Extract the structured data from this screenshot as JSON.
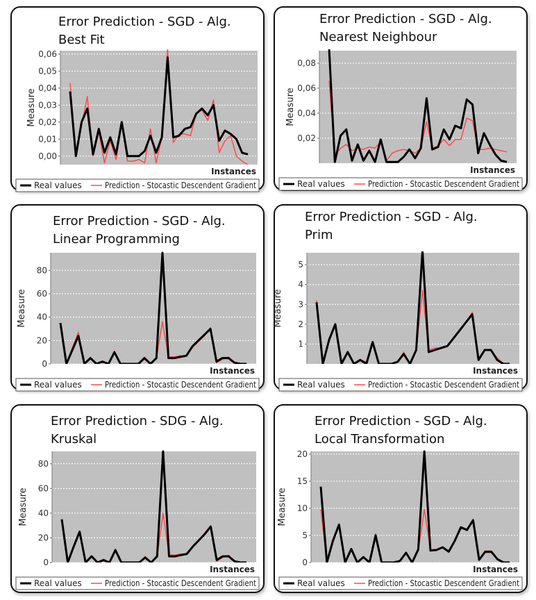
{
  "colors": {
    "real": "#000000",
    "prediction": "#ff4a4a",
    "plot_bg": "#c0c0c0",
    "grid": "#ffffff"
  },
  "legend": {
    "real": "Real values",
    "prediction": "Prediction - Stocastic Descendent Gradient"
  },
  "chart_data": [
    {
      "type": "line",
      "title_line1": "Error Prediction - SGD - Alg.",
      "title_line2": "Best Fit",
      "xlabel": "Instances",
      "ylabel": "Measure",
      "ylim": [
        -0.005,
        0.062
      ],
      "yticks": [
        "0,00",
        "0,01",
        "0,02",
        "0,03",
        "0,04",
        "0,05",
        "0,06"
      ],
      "ytick_values": [
        0,
        0.01,
        0.02,
        0.03,
        0.04,
        0.05,
        0.06
      ],
      "grid": true,
      "series": [
        {
          "name": "Real values",
          "values": [
            0.038,
            0,
            0.02,
            0.028,
            0.001,
            0.016,
            0.002,
            0.011,
            0.001,
            0.02,
            0,
            0,
            0,
            0.003,
            0.012,
            0.002,
            0.011,
            0.058,
            0.011,
            0.012,
            0.016,
            0.017,
            0.025,
            0.028,
            0.024,
            0.03,
            0.009,
            0.015,
            0.013,
            0.01,
            0.002,
            0.001
          ]
        },
        {
          "name": "Prediction - Stocastic Descendent Gradient",
          "values": [
            0.043,
            0,
            0.018,
            0.035,
            0,
            0.014,
            -0.004,
            0.009,
            -0.002,
            0.019,
            -0.003,
            -0.003,
            -0.002,
            -0.004,
            0.016,
            -0.004,
            0.011,
            0.063,
            0.008,
            0.013,
            0.013,
            0.012,
            0.025,
            0.027,
            0.021,
            0.033,
            0.002,
            0.009,
            0.012,
            0,
            -0.003,
            -0.005
          ]
        }
      ]
    },
    {
      "type": "line",
      "title_line1": "Error Prediction - SGD - Alg.",
      "title_line2": "Nearest Neighbour",
      "xlabel": "Instances",
      "ylabel": "Measure",
      "ylim": [
        0,
        0.09
      ],
      "yticks": [
        "0,02",
        "0,04",
        "0,06",
        "0,08"
      ],
      "ytick_values": [
        0.02,
        0.04,
        0.06,
        0.08
      ],
      "grid": true,
      "series": [
        {
          "name": "Real values",
          "values": [
            0.092,
            0.001,
            0.022,
            0.027,
            0.002,
            0.015,
            0.002,
            0.01,
            0.001,
            0.019,
            0.001,
            0.001,
            0.001,
            0.005,
            0.011,
            0.004,
            0.012,
            0.052,
            0.011,
            0.013,
            0.027,
            0.019,
            0.03,
            0.028,
            0.051,
            0.047,
            0.008,
            0.024,
            0.015,
            0.007,
            0.002,
            0.001
          ]
        },
        {
          "name": "Prediction - Stocastic Descendent Gradient",
          "values": [
            0.066,
            0.006,
            0.012,
            0.015,
            0.01,
            0.012,
            0.011,
            0.013,
            0.012,
            0.017,
            0.002,
            0.008,
            0.01,
            0.011,
            0.01,
            0.008,
            0.012,
            0.033,
            0.012,
            0.014,
            0.019,
            0.014,
            0.019,
            0.019,
            0.036,
            0.034,
            0.011,
            0.011,
            0.012,
            0.011,
            0.01,
            0.009
          ]
        }
      ]
    },
    {
      "type": "line",
      "title_line1": "Error Prediction - SGD - Alg.",
      "title_line2": "Linear Programming",
      "xlabel": "Instances",
      "ylabel": "Measure",
      "ylim": [
        0,
        95
      ],
      "yticks": [
        "0",
        "20",
        "40",
        "60",
        "80"
      ],
      "ytick_values": [
        0,
        20,
        40,
        60,
        80
      ],
      "grid": true,
      "series": [
        {
          "name": "Real values",
          "values": [
            35,
            0,
            12,
            24,
            0,
            5,
            0,
            2,
            0,
            10,
            0,
            0,
            0,
            0,
            5,
            0,
            5,
            95,
            5,
            5,
            6,
            7,
            15,
            20,
            25,
            30,
            2,
            5,
            5,
            1,
            0,
            0
          ]
        },
        {
          "name": "Prediction - Stocastic Descendent Gradient",
          "values": [
            33,
            0,
            14,
            27,
            0,
            5,
            0,
            1,
            0,
            11,
            0,
            0,
            0,
            0,
            4,
            0,
            5,
            36,
            6,
            6,
            7,
            7,
            14,
            19,
            24,
            31,
            1,
            4,
            6,
            1,
            0,
            0
          ]
        }
      ]
    },
    {
      "type": "line",
      "title_line1": "Error Prediction - SGD - Alg.",
      "title_line2": "Prim",
      "xlabel": "Instances",
      "ylabel": "Measure",
      "ylim": [
        0,
        5.6
      ],
      "yticks": [
        "1",
        "2",
        "3",
        "4",
        "5"
      ],
      "ytick_values": [
        1,
        2,
        3,
        4,
        5
      ],
      "grid": true,
      "series": [
        {
          "name": "Real values",
          "values": [
            3.1,
            0,
            1.2,
            2,
            0,
            0.6,
            0,
            0.2,
            0,
            1.1,
            0,
            0,
            0,
            0.1,
            0.5,
            0,
            0.7,
            5.7,
            0.6,
            0.7,
            0.8,
            0.9,
            1.3,
            1.7,
            2.1,
            2.5,
            0.2,
            0.7,
            0.7,
            0.2,
            0,
            0
          ]
        },
        {
          "name": "Prediction - Stocastic Descendent Gradient",
          "values": [
            3.2,
            0,
            1.3,
            2,
            0.1,
            0.6,
            0,
            0.2,
            0.1,
            1.1,
            0,
            0,
            0,
            0.1,
            0.6,
            0,
            0.7,
            3.7,
            0.7,
            0.8,
            0.8,
            0.9,
            1.3,
            1.7,
            2.1,
            2.6,
            0.2,
            0.7,
            0.7,
            0.3,
            0,
            0
          ]
        }
      ]
    },
    {
      "type": "line",
      "title_line1": "Error Prediction - SDG - Alg.",
      "title_line2": "Kruskal",
      "xlabel": "Instances",
      "ylabel": "Measure",
      "ylim": [
        0,
        90
      ],
      "yticks": [
        "0",
        "20",
        "40",
        "60",
        "80"
      ],
      "ytick_values": [
        0,
        20,
        40,
        60,
        80
      ],
      "grid": true,
      "series": [
        {
          "name": "Real values",
          "values": [
            35,
            0,
            13,
            25,
            0,
            5,
            0,
            2,
            0,
            10,
            0,
            0,
            0,
            0,
            4,
            0,
            5,
            90,
            5,
            5,
            6,
            7,
            13,
            18,
            23,
            29,
            2,
            5,
            5,
            1,
            0,
            0
          ]
        },
        {
          "name": "Prediction - Stocastic Descendent Gradient",
          "values": [
            33,
            0,
            14,
            23,
            0,
            5,
            0,
            1,
            0,
            11,
            0,
            0,
            0,
            0,
            5,
            0,
            5,
            40,
            6,
            6,
            7,
            7,
            13,
            18,
            24,
            30,
            1,
            4,
            6,
            1,
            0,
            0
          ]
        }
      ]
    },
    {
      "type": "line",
      "title_line1": "Error Prediction - SGD - Alg.",
      "title_line2": "Local Transformation",
      "xlabel": "Instances",
      "ylabel": "Measure",
      "ylim": [
        0,
        20.5
      ],
      "yticks": [
        "0",
        "5",
        "10",
        "15",
        "20"
      ],
      "ytick_values": [
        0,
        5,
        10,
        15,
        20
      ],
      "grid": true,
      "series": [
        {
          "name": "Real values",
          "values": [
            14,
            0,
            4,
            7,
            0,
            2.5,
            0,
            1,
            0,
            5,
            0,
            0,
            0,
            0.3,
            1.8,
            0,
            2.4,
            20.5,
            2.2,
            2.3,
            2.8,
            2,
            4,
            6.5,
            6,
            7.8,
            0.5,
            2,
            2,
            0.6,
            0,
            0
          ]
        },
        {
          "name": "Prediction - Stocastic Descendent Gradient",
          "values": [
            9.8,
            0,
            4.2,
            6.8,
            0,
            2.2,
            0,
            1,
            0,
            5.3,
            0,
            0,
            0,
            0.3,
            1.6,
            0,
            2.2,
            9.8,
            2.4,
            2.4,
            2.7,
            2.2,
            4,
            6.2,
            6.2,
            8,
            0.7,
            1.8,
            1.8,
            0.6,
            0,
            0
          ]
        }
      ]
    }
  ]
}
